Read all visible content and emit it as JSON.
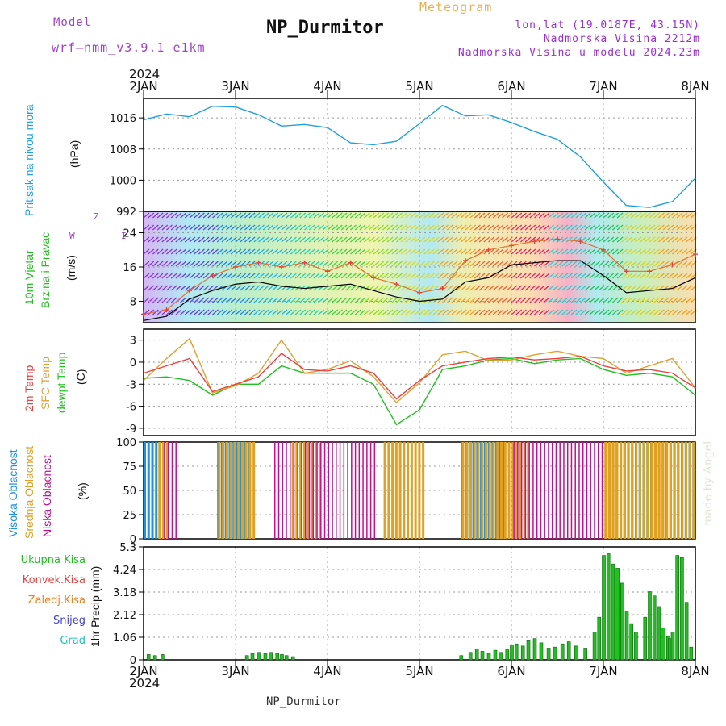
{
  "header": {
    "model_label": "Model",
    "model_name": "wrf–nmm_v3.9.1  e1km",
    "title": "NP_Durmitor",
    "meteogram_label": "Meteogram",
    "lonlat": "lon,lat (19.0187E, 43.15N)",
    "altitude": "Nadmorska Visina 2212m",
    "model_altitude": "Nadmorska Visina u modelu 2024.23m",
    "year_top": "2024",
    "year_bottom": "2024",
    "footer": "NP_Durmitor",
    "watermark": "made by Angel"
  },
  "x_axis": {
    "labels": [
      "2JAN",
      "3JAN",
      "4JAN",
      "5JAN",
      "6JAN",
      "7JAN",
      "8JAN"
    ]
  },
  "panel_labels": {
    "pressure": [
      "Pritisak na nivou mora",
      "(hPa)"
    ],
    "wind": [
      "10m Vjetar",
      "Brzina i Pravac",
      "(m/s)"
    ],
    "wind_compass": [
      "W",
      "Z",
      "I"
    ],
    "temp": [
      "2m Temp",
      "SFC Temp",
      "dewpt Temp",
      "(C)"
    ],
    "cloud": [
      "Visoka Oblacnost",
      "Srednja Oblacnost",
      "Niska Oblacnost",
      "(%)"
    ],
    "precip_axis": "1hr Precip (mm)",
    "precip_legend": [
      "Ukupna Kisa",
      "Konvek.Kisa",
      "Zaledj.Kisa",
      "Snijeg",
      "Grad"
    ]
  },
  "colors": {
    "pressure": "#1ea0e0",
    "temp2m": "#e84040",
    "sfc": "#e0a030",
    "dewpt": "#20c020",
    "cloud_high": "#2090e0",
    "cloud_mid": "#e0a020",
    "cloud_low": "#c01090",
    "total_rain": "#20c020",
    "conv_rain": "#e84040",
    "freezing": "#f08020",
    "snow": "#4040d0",
    "hail": "#20c0c0",
    "gust": "#e07030"
  },
  "chart_data": [
    {
      "type": "line",
      "id": "pressure",
      "ylabel": "(hPa)",
      "ylim": [
        992,
        1021
      ],
      "yticks": [
        992,
        1000,
        1008,
        1016
      ],
      "x_days": [
        0,
        0.25,
        0.5,
        0.75,
        1,
        1.25,
        1.5,
        1.75,
        2,
        2.25,
        2.5,
        2.75,
        3,
        3.25,
        3.5,
        3.75,
        4,
        4.25,
        4.5,
        4.75,
        5,
        5.25,
        5.5,
        5.75,
        6
      ],
      "series": [
        {
          "values": [
            1015.5,
            1017.0,
            1016.3,
            1019.0,
            1018.8,
            1016.8,
            1013.9,
            1014.3,
            1013.5,
            1009.6,
            1009.1,
            1010.0,
            1014.5,
            1019.2,
            1016.5,
            1016.8,
            1014.8,
            1012.5,
            1010.5,
            1006.0,
            999.5,
            993.5,
            993.0,
            994.5,
            1000.5
          ]
        }
      ]
    },
    {
      "type": "line",
      "id": "wind",
      "ylabel": "(m/s)",
      "ylim": [
        3,
        29
      ],
      "yticks": [
        8,
        16,
        24
      ],
      "x_days": [
        0,
        0.25,
        0.5,
        0.75,
        1,
        1.25,
        1.5,
        1.75,
        2,
        2.25,
        2.5,
        2.75,
        3,
        3.25,
        3.5,
        3.75,
        4,
        4.25,
        4.5,
        4.75,
        5,
        5.25,
        5.5,
        5.75,
        6
      ],
      "series": [
        {
          "name": "speed",
          "values": [
            3.5,
            4.5,
            8.5,
            10.5,
            12.0,
            12.5,
            11.5,
            11.0,
            11.5,
            12.0,
            10.5,
            9.0,
            8.0,
            8.5,
            12.5,
            13.5,
            16.5,
            17.0,
            17.5,
            17.5,
            14.0,
            10.0,
            10.5,
            11.0,
            13.5
          ]
        },
        {
          "name": "gust",
          "values": [
            5.0,
            6.0,
            10.5,
            14.0,
            16.0,
            17.0,
            16.0,
            17.0,
            15.0,
            17.0,
            13.5,
            12.0,
            10.0,
            11.0,
            17.5,
            20.0,
            21.0,
            22.0,
            22.5,
            22.0,
            20.0,
            15.0,
            15.0,
            16.5,
            19.0
          ]
        }
      ]
    },
    {
      "type": "line",
      "id": "temperature",
      "ylabel": "(C)",
      "ylim": [
        -10,
        4.5
      ],
      "yticks": [
        -9,
        -6,
        -3,
        0,
        3
      ],
      "x_days": [
        0,
        0.25,
        0.5,
        0.75,
        1,
        1.25,
        1.5,
        1.75,
        2,
        2.25,
        2.5,
        2.75,
        3,
        3.25,
        3.5,
        3.75,
        4,
        4.25,
        4.5,
        4.75,
        5,
        5.25,
        5.5,
        5.75,
        6
      ],
      "series": [
        {
          "name": "2m Temp",
          "values": [
            -1.5,
            -0.5,
            0.5,
            -4.0,
            -3.0,
            -2.0,
            1.2,
            -1.0,
            -1.2,
            -0.5,
            -1.5,
            -5.0,
            -2.5,
            -0.5,
            0.0,
            0.5,
            0.7,
            0.3,
            0.5,
            0.8,
            -0.5,
            -1.2,
            -1.0,
            -1.5,
            -3.5
          ]
        },
        {
          "name": "SFC Temp",
          "values": [
            -2.5,
            0.5,
            3.2,
            -4.2,
            -3.2,
            -1.5,
            3.0,
            -1.5,
            -1.0,
            0.2,
            -2.0,
            -5.5,
            -2.8,
            1.0,
            1.5,
            0.2,
            0.3,
            1.0,
            1.5,
            0.8,
            0.5,
            -1.5,
            -0.5,
            0.5,
            -3.5
          ]
        },
        {
          "name": "dewpt Temp",
          "values": [
            -2.2,
            -2.0,
            -2.5,
            -4.5,
            -3.0,
            -3.0,
            -0.5,
            -1.5,
            -1.5,
            -1.5,
            -3.0,
            -8.5,
            -6.5,
            -1.0,
            -0.5,
            0.3,
            0.5,
            -0.2,
            0.3,
            0.5,
            -1.0,
            -1.8,
            -1.5,
            -2.0,
            -4.5
          ]
        }
      ]
    },
    {
      "type": "bar",
      "id": "cloud",
      "ylabel": "(%)",
      "ylim": [
        0,
        100
      ],
      "yticks": [
        0,
        25,
        50,
        75,
        100
      ],
      "series": [
        {
          "name": "Visoka Oblacnost",
          "ranges": [
            [
              0,
              0.2
            ],
            [
              0.8,
              1.15
            ],
            [
              3.45,
              3.95
            ],
            [
              5.05,
              6.0
            ]
          ]
        },
        {
          "name": "Srednja Oblacnost",
          "ranges": [
            [
              0.15,
              0.25
            ],
            [
              0.8,
              1.2
            ],
            [
              1.6,
              1.9
            ],
            [
              2.6,
              3.05
            ],
            [
              3.45,
              4.2
            ],
            [
              5.0,
              6.0
            ]
          ]
        },
        {
          "name": "Niska Oblacnost",
          "ranges": [
            [
              0.2,
              0.35
            ],
            [
              1.4,
              2.5
            ],
            [
              4.0,
              5.0
            ]
          ]
        }
      ]
    },
    {
      "type": "bar",
      "id": "precip",
      "ylabel": "1hr Precip (mm)",
      "ylim": [
        0,
        5.3
      ],
      "yticks": [
        0,
        1.06,
        2.12,
        3.18,
        4.24,
        5.3
      ],
      "x_days": [
        0.05,
        0.12,
        0.2,
        1.12,
        1.18,
        1.25,
        1.32,
        1.38,
        1.45,
        1.5,
        1.55,
        1.62,
        3.45,
        3.55,
        3.62,
        3.68,
        3.75,
        3.82,
        3.88,
        3.95,
        4.0,
        4.05,
        4.12,
        4.18,
        4.25,
        4.32,
        4.4,
        4.47,
        4.55,
        4.62,
        4.7,
        4.8,
        4.9,
        4.95,
        5.0,
        5.05,
        5.1,
        5.15,
        5.2,
        5.25,
        5.3,
        5.35,
        5.45,
        5.5,
        5.55,
        5.6,
        5.65,
        5.7,
        5.72,
        5.75,
        5.8,
        5.85,
        5.9,
        5.95
      ],
      "values": [
        0.25,
        0.2,
        0.25,
        0.2,
        0.3,
        0.35,
        0.3,
        0.35,
        0.3,
        0.25,
        0.2,
        0.15,
        0.2,
        0.35,
        0.5,
        0.4,
        0.3,
        0.45,
        0.35,
        0.5,
        0.7,
        0.75,
        0.65,
        0.9,
        1.0,
        0.8,
        0.55,
        0.6,
        0.75,
        0.85,
        0.65,
        0.55,
        1.3,
        2.0,
        4.9,
        5.0,
        4.5,
        4.3,
        3.6,
        2.3,
        1.7,
        1.3,
        2.0,
        3.2,
        3.0,
        2.5,
        1.5,
        1.1,
        1.0,
        1.3,
        4.9,
        4.8,
        2.7,
        0.6
      ]
    }
  ]
}
